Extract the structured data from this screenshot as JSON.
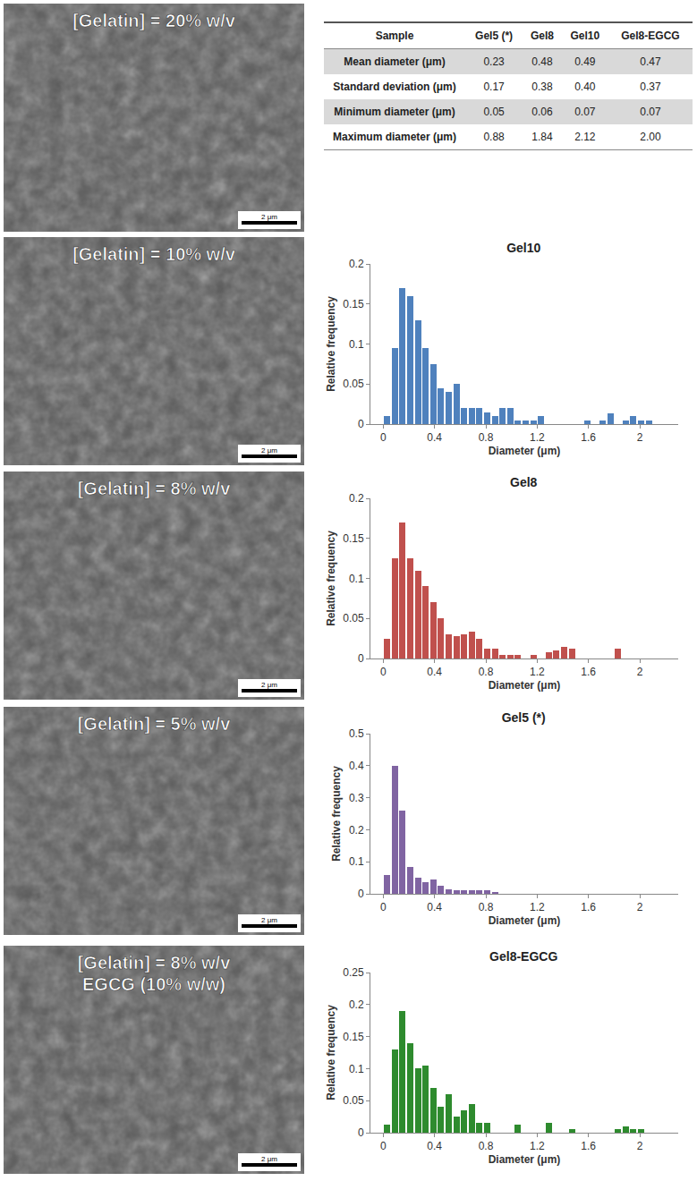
{
  "images": [
    {
      "label": [
        "[Gelatin] = 20% w/v"
      ],
      "scale_bar": "2 μm"
    },
    {
      "label": [
        "[Gelatin] = 10% w/v"
      ],
      "scale_bar": "2 μm"
    },
    {
      "label": [
        "[Gelatin] = 8% w/v"
      ],
      "scale_bar": "2 μm"
    },
    {
      "label": [
        "[Gelatin] = 5% w/v"
      ],
      "scale_bar": "2 μm"
    },
    {
      "label": [
        "[Gelatin] = 8% w/v",
        "EGCG (10% w/w)"
      ],
      "scale_bar": "2 μm"
    }
  ],
  "table": {
    "header": [
      "Sample",
      "Gel5 (*)",
      "Gel8",
      "Gel10",
      "Gel8-EGCG"
    ],
    "rows": [
      [
        "Mean diameter (μm)",
        "0.23",
        "0.48",
        "0.49",
        "0.47"
      ],
      [
        "Standard deviation (μm)",
        "0.17",
        "0.38",
        "0.40",
        "0.37"
      ],
      [
        "Minimum diameter (μm)",
        "0.05",
        "0.06",
        "0.07",
        "0.07"
      ],
      [
        "Maximum diameter (μm)",
        "0.88",
        "1.84",
        "2.12",
        "2.00"
      ]
    ]
  },
  "chart_data": [
    {
      "type": "histogram",
      "title": "Gel10",
      "x_label": "Diameter (μm)",
      "y_label": "Relative frequency",
      "bins": [
        0,
        0.06,
        0.12,
        0.18,
        0.24,
        0.3,
        0.36,
        0.42,
        0.48,
        0.54,
        0.6,
        0.66,
        0.72,
        0.78,
        0.84,
        0.9,
        0.96,
        1.02,
        1.08,
        1.14,
        1.2,
        1.26,
        1.32,
        1.38,
        1.44,
        1.5,
        1.56,
        1.62,
        1.68,
        1.74,
        1.8,
        1.86,
        1.92,
        1.98,
        2.04,
        2.1,
        2.16
      ],
      "values": [
        0.01,
        0.095,
        0.17,
        0.16,
        0.13,
        0.095,
        0.075,
        0.045,
        0.04,
        0.05,
        0.02,
        0.02,
        0.02,
        0.015,
        0.01,
        0.02,
        0.02,
        0.005,
        0.005,
        0.005,
        0.01,
        0,
        0,
        0,
        0,
        0,
        0.005,
        0,
        0.005,
        0.013,
        0,
        0.005,
        0.01,
        0.005,
        0.005,
        0
      ],
      "color": "#4f81bd",
      "xlim": [
        -0.1,
        2.3
      ],
      "xticks": [
        0,
        0.4,
        0.8,
        1.2,
        1.6,
        2
      ],
      "ylim": [
        0,
        0.2
      ],
      "yticks": [
        0,
        0.05,
        0.1,
        0.15,
        0.2
      ],
      "grid": false
    },
    {
      "type": "histogram",
      "title": "Gel8",
      "x_label": "Diameter (μm)",
      "y_label": "Relative frequency",
      "bins": [
        0,
        0.06,
        0.12,
        0.18,
        0.24,
        0.3,
        0.36,
        0.42,
        0.48,
        0.54,
        0.6,
        0.66,
        0.72,
        0.78,
        0.84,
        0.9,
        0.96,
        1.02,
        1.08,
        1.14,
        1.2,
        1.26,
        1.32,
        1.38,
        1.44,
        1.5,
        1.56,
        1.62,
        1.68,
        1.74,
        1.8,
        1.86
      ],
      "values": [
        0.025,
        0.125,
        0.17,
        0.125,
        0.11,
        0.09,
        0.07,
        0.05,
        0.03,
        0.028,
        0.03,
        0.033,
        0.025,
        0.012,
        0.012,
        0.005,
        0.005,
        0.005,
        0,
        0.005,
        0,
        0.008,
        0.01,
        0.015,
        0.012,
        0,
        0,
        0,
        0,
        0,
        0.012
      ],
      "color": "#c0504d",
      "xlim": [
        -0.1,
        2.3
      ],
      "xticks": [
        0,
        0.4,
        0.8,
        1.2,
        1.6,
        2
      ],
      "ylim": [
        0,
        0.2
      ],
      "yticks": [
        0,
        0.05,
        0.1,
        0.15,
        0.2
      ],
      "grid": false
    },
    {
      "type": "histogram",
      "title": "Gel5 (*)",
      "x_label": "Diameter (μm)",
      "y_label": "Relative frequency",
      "bins": [
        0,
        0.06,
        0.12,
        0.18,
        0.24,
        0.3,
        0.36,
        0.42,
        0.48,
        0.54,
        0.6,
        0.66,
        0.72,
        0.78,
        0.84,
        0.9
      ],
      "values": [
        0.06,
        0.4,
        0.26,
        0.085,
        0.05,
        0.035,
        0.045,
        0.025,
        0.015,
        0.012,
        0.01,
        0.01,
        0.01,
        0.01,
        0.005
      ],
      "color": "#8064a2",
      "xlim": [
        -0.1,
        2.3
      ],
      "xticks": [
        0,
        0.4,
        0.8,
        1.2,
        1.6,
        2
      ],
      "ylim": [
        0,
        0.5
      ],
      "yticks": [
        0,
        0.1,
        0.2,
        0.3,
        0.4,
        0.5
      ],
      "grid": false
    },
    {
      "type": "histogram",
      "title": "Gel8-EGCG",
      "x_label": "Diameter (μm)",
      "y_label": "Relative frequency",
      "bins": [
        0,
        0.06,
        0.12,
        0.18,
        0.24,
        0.3,
        0.36,
        0.42,
        0.48,
        0.54,
        0.6,
        0.66,
        0.72,
        0.78,
        0.84,
        0.9,
        0.96,
        1.02,
        1.08,
        1.14,
        1.2,
        1.26,
        1.32,
        1.38,
        1.44,
        1.5,
        1.56,
        1.62,
        1.68,
        1.74,
        1.8,
        1.86,
        1.92,
        1.98,
        2.04
      ],
      "values": [
        0.012,
        0.13,
        0.19,
        0.14,
        0.1,
        0.105,
        0.07,
        0.04,
        0.06,
        0.025,
        0.035,
        0.045,
        0.015,
        0.015,
        0,
        0,
        0,
        0.012,
        0,
        0,
        0,
        0.015,
        0,
        0,
        0.005,
        0,
        0,
        0,
        0,
        0,
        0.005,
        0.01,
        0.005,
        0.005
      ],
      "color": "#2e8b2e",
      "xlim": [
        -0.1,
        2.3
      ],
      "xticks": [
        0,
        0.4,
        0.8,
        1.2,
        1.6,
        2
      ],
      "ylim": [
        0,
        0.25
      ],
      "yticks": [
        0,
        0.05,
        0.1,
        0.15,
        0.2,
        0.25
      ],
      "grid": false
    }
  ]
}
